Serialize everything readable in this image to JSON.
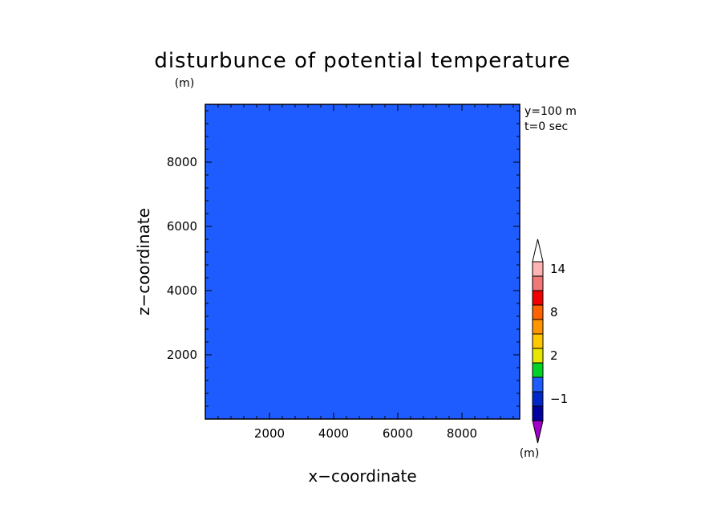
{
  "chart_data": {
    "type": "heatmap",
    "title": "disturbunce of potential temperature",
    "xlabel": "x−coordinate",
    "ylabel": "z−coordinate",
    "yunit": "(m)",
    "xunit": "(m)",
    "xlim": [
      0,
      9800
    ],
    "ylim": [
      0,
      9800
    ],
    "xticks": [
      "2000",
      "4000",
      "6000",
      "8000"
    ],
    "yticks": [
      "2000",
      "4000",
      "6000",
      "8000"
    ],
    "annotations": [
      "y=100 m",
      "t=0 sec"
    ],
    "field_value_uniform": 0,
    "fill_color": "#1e5cff",
    "colorbar": {
      "levels": [
        -2,
        -1,
        0,
        1,
        2,
        4,
        6,
        8,
        10,
        12,
        14,
        16
      ],
      "colors": [
        "#a000c8",
        "#0000a0",
        "#0028c8",
        "#1e5cff",
        "#00d228",
        "#e6e600",
        "#ffc800",
        "#ff9600",
        "#ff6400",
        "#f00000",
        "#f07878",
        "#ffb4b4",
        "#ffffff"
      ],
      "labels": [
        "−1",
        "2",
        "8",
        "14"
      ]
    }
  }
}
